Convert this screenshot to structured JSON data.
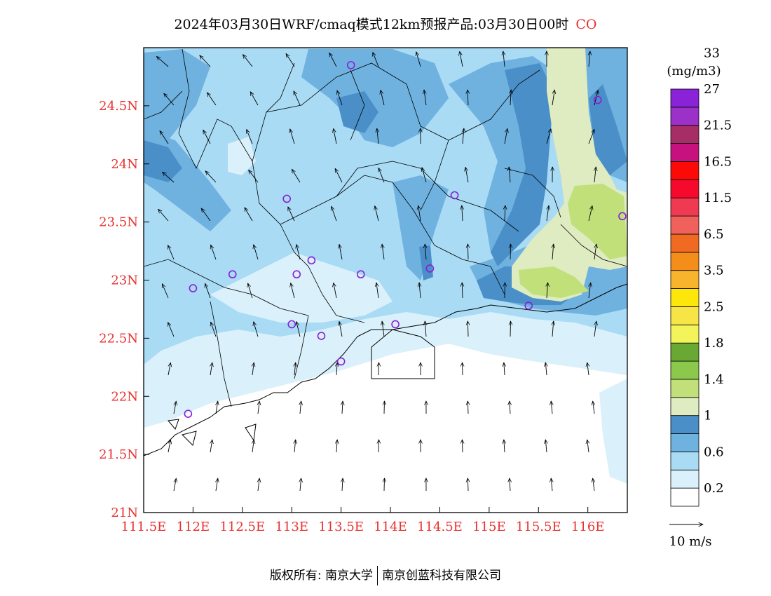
{
  "title": {
    "text": "2024年03月30日WRF/cmaq模式12km预报产品:03月30日00时",
    "species": "CO"
  },
  "map": {
    "lat_labels": [
      "24.5N",
      "24N",
      "23.5N",
      "23N",
      "22.5N",
      "22N",
      "21.5N",
      "21N"
    ],
    "lon_labels": [
      "111.5E",
      "112E",
      "112.5E",
      "113E",
      "113.5E",
      "114E",
      "114.5E",
      "115E",
      "115.5E",
      "116E"
    ],
    "lat_range": [
      21.0,
      25.0
    ],
    "lon_range": [
      111.5,
      116.4
    ]
  },
  "legend": {
    "unit": "(mg/m3)",
    "levels": [
      "0.2",
      "0.6",
      "1",
      "1.4",
      "1.8",
      "2.5",
      "3.5",
      "6.5",
      "11.5",
      "16.5",
      "21.5",
      "27",
      "33"
    ],
    "colors": [
      "#ffffff",
      "#daf0fa",
      "#a9dbf5",
      "#6fb2e0",
      "#4a8fc8",
      "#dfebc0",
      "#c1e07a",
      "#8cc84b",
      "#6aa834",
      "#f2f45a",
      "#f7e548",
      "#fde60a",
      "#f9b42d",
      "#f48e1b",
      "#f06b21",
      "#f0615c",
      "#f03a52",
      "#f50a2e",
      "#fb0a07",
      "#c7117f",
      "#a62e66",
      "#9b31c8",
      "#8a22d8"
    ],
    "wind_label": "10 m/s"
  },
  "stations": [
    {
      "lon": 113.6,
      "lat": 24.85
    },
    {
      "lon": 116.1,
      "lat": 24.55
    },
    {
      "lon": 114.65,
      "lat": 23.73
    },
    {
      "lon": 112.95,
      "lat": 23.7
    },
    {
      "lon": 116.35,
      "lat": 23.55
    },
    {
      "lon": 113.2,
      "lat": 23.17
    },
    {
      "lon": 113.05,
      "lat": 23.05
    },
    {
      "lon": 113.7,
      "lat": 23.05
    },
    {
      "lon": 114.4,
      "lat": 23.1
    },
    {
      "lon": 112.4,
      "lat": 23.05
    },
    {
      "lon": 112.0,
      "lat": 22.93
    },
    {
      "lon": 115.4,
      "lat": 22.78
    },
    {
      "lon": 113.0,
      "lat": 22.62
    },
    {
      "lon": 113.3,
      "lat": 22.52
    },
    {
      "lon": 114.05,
      "lat": 22.62
    },
    {
      "lon": 113.5,
      "lat": 22.3
    },
    {
      "lon": 111.95,
      "lat": 21.85
    }
  ],
  "footer": {
    "left": "版权所有: 南京大学",
    "right": "南京创蓝科技有限公司"
  }
}
